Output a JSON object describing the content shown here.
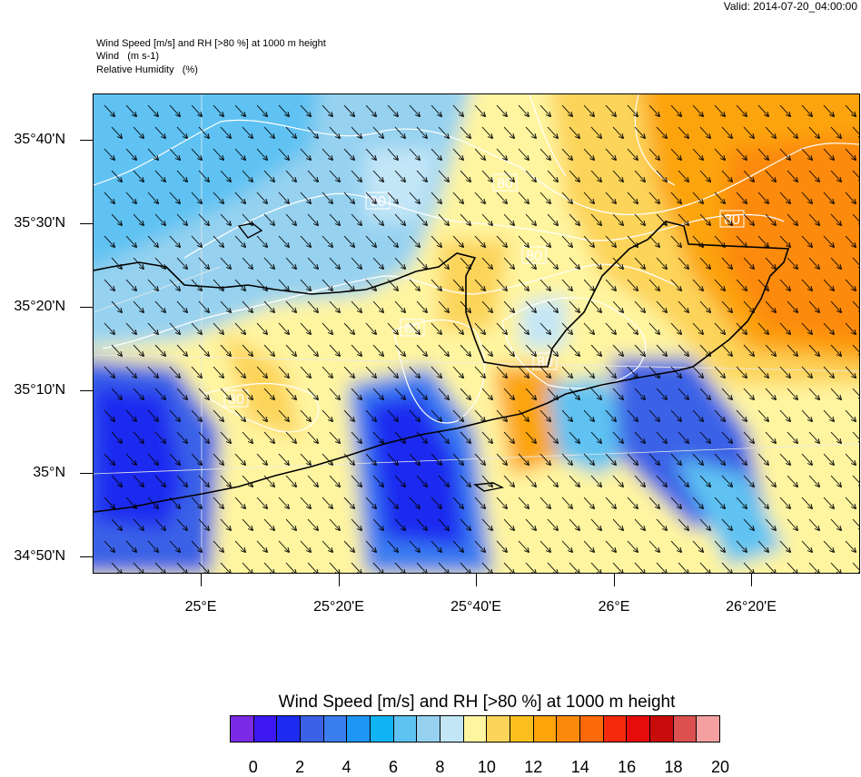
{
  "valid_text": "Valid: 2014-07-20_04:00:00",
  "header": {
    "line1": "Wind Speed [m/s] and RH [>80 %] at 1000 m height",
    "line2": "Wind   (m s-1)",
    "line3": "Relative Humidity   (%)"
  },
  "lat_labels": [
    "35°40'N",
    "35°30'N",
    "35°20'N",
    "35°10'N",
    "35°N",
    "34°50'N"
  ],
  "lon_labels": [
    "25°E",
    "25°20'E",
    "25°40'E",
    "26°E",
    "26°20'E"
  ],
  "contour_label": "80",
  "colorbar": {
    "title": "Wind Speed [m/s] and RH [>80 %] at 1000 m height",
    "colors": [
      "#7b2be6",
      "#3d18f2",
      "#1d2cf0",
      "#3b62e6",
      "#3a7ef0",
      "#1e96f5",
      "#10b4f5",
      "#5ec2f2",
      "#96d2f0",
      "#c3e6f7",
      "#fff5a0",
      "#fcd45a",
      "#fcc01e",
      "#fca40a",
      "#fc8a0a",
      "#fc6a08",
      "#f52a0c",
      "#e60c0c",
      "#c80c0c",
      "#dc5050",
      "#f5a0a0"
    ],
    "labels": [
      "0",
      "2",
      "4",
      "6",
      "8",
      "10",
      "12",
      "14",
      "16",
      "18",
      "20"
    ]
  }
}
